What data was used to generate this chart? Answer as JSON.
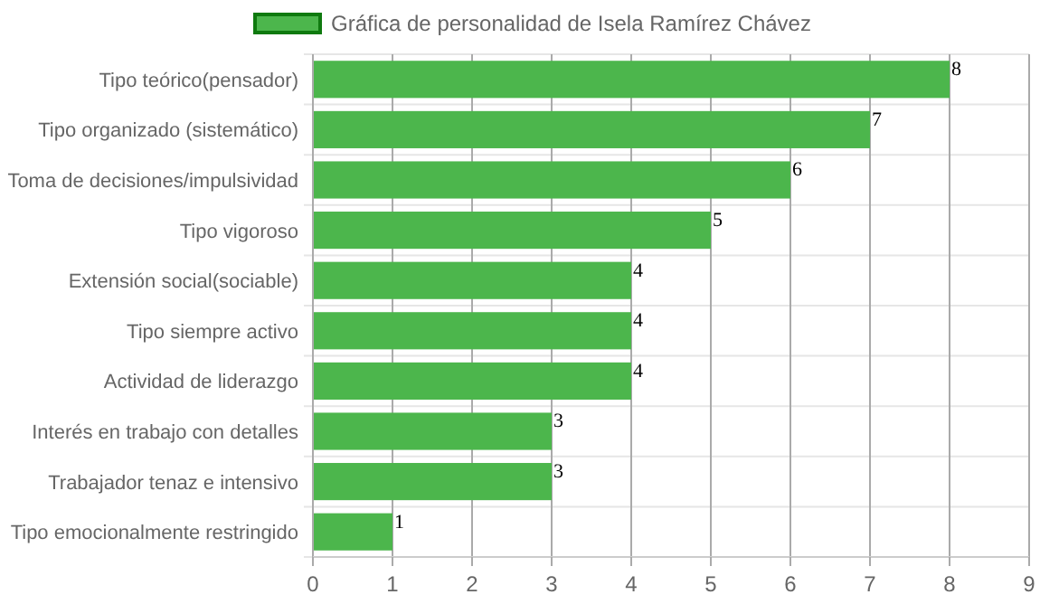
{
  "chart_data": {
    "type": "bar",
    "orientation": "horizontal",
    "categories": [
      "Tipo teórico(pensador)",
      "Tipo organizado (sistemático)",
      "Toma de decisiones/impulsividad",
      "Tipo vigoroso",
      "Extensión social(sociable)",
      "Tipo siempre activo",
      "Actividad de liderazgo",
      "Interés en trabajo con detalles",
      "Trabajador tenaz e intensivo",
      "Tipo emocionalmente restringido"
    ],
    "series": [
      {
        "name": "Gráfica de personalidad de Isela Ramírez Chávez",
        "color": "#4cb64c",
        "values": [
          8,
          7,
          6,
          5,
          4,
          4,
          4,
          3,
          3,
          1
        ]
      }
    ],
    "xlim": [
      0,
      9
    ],
    "xticks": [
      0,
      1,
      2,
      3,
      4,
      5,
      6,
      7,
      8,
      9
    ],
    "grid": true,
    "legend": "top",
    "data_labels": true
  }
}
